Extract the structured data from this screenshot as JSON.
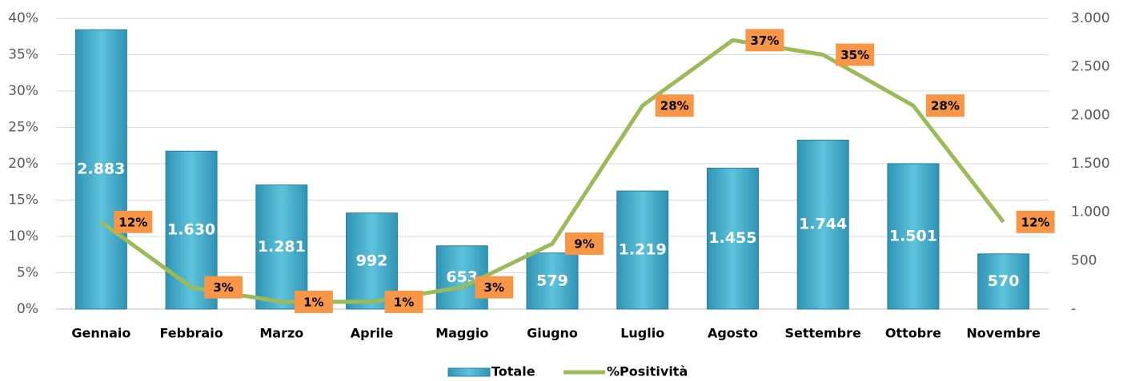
{
  "chart_data": {
    "type": "combo",
    "categories": [
      "Gennaio",
      "Febbraio",
      "Marzo",
      "Aprile",
      "Maggio",
      "Giugno",
      "Luglio",
      "Agosto",
      "Settembre",
      "Ottobre",
      "Novembre"
    ],
    "series": [
      {
        "name": "Totale",
        "type": "bar",
        "axis": "y2",
        "color": "#4bacc6",
        "values": [
          2883,
          1630,
          1281,
          992,
          653,
          579,
          1219,
          1455,
          1744,
          1501,
          570
        ],
        "value_labels": [
          "2.883",
          "1.630",
          "1.281",
          "992",
          "653",
          "579",
          "1.219",
          "1.455",
          "1.744",
          "1.501",
          "570"
        ]
      },
      {
        "name": "%Positività",
        "type": "line",
        "axis": "y",
        "color": "#9bbb59",
        "values": [
          12,
          3,
          1,
          1,
          3,
          9,
          28,
          37,
          35,
          28,
          12
        ],
        "value_labels": [
          "12%",
          "3%",
          "1%",
          "1%",
          "3%",
          "9%",
          "28%",
          "37%",
          "35%",
          "28%",
          "12%"
        ]
      }
    ],
    "ylim": [
      0,
      40
    ],
    "yticks": [
      {
        "value": 0,
        "label": "0%"
      },
      {
        "value": 5,
        "label": "5%"
      },
      {
        "value": 10,
        "label": "10%"
      },
      {
        "value": 15,
        "label": "15%"
      },
      {
        "value": 20,
        "label": "20%"
      },
      {
        "value": 25,
        "label": "25%"
      },
      {
        "value": 30,
        "label": "30%"
      },
      {
        "value": 35,
        "label": "35%"
      },
      {
        "value": 40,
        "label": "40%"
      }
    ],
    "y2lim": [
      0,
      3000
    ],
    "y2ticks": [
      {
        "value": 0,
        "label": "-"
      },
      500,
      {
        "value": 1000,
        "label": "1.000"
      },
      {
        "value": 1500,
        "label": "1.500"
      },
      {
        "value": 2000,
        "label": "2.000"
      },
      {
        "value": 2500,
        "label": "2.500"
      },
      {
        "value": 3000,
        "label": "3.000"
      }
    ],
    "grid": true,
    "legend": "bottom"
  }
}
